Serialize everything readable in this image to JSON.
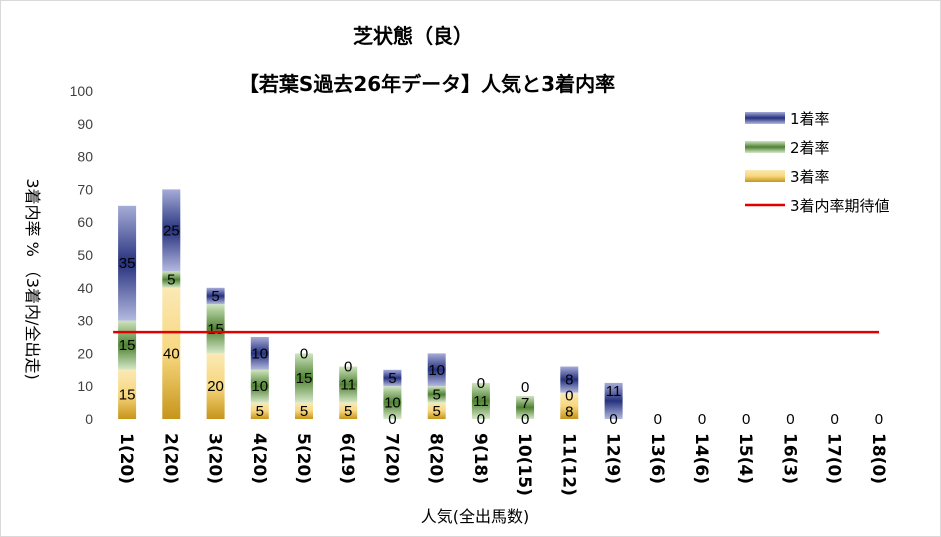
{
  "chart_data": {
    "type": "bar",
    "stacked": true,
    "title_line1": "芝状態（良）",
    "title_line2": "【若葉S過去26年データ】人気と3着内率",
    "xlabel": "人気(全出馬数)",
    "ylabel": "3着内率 % （3着内/全出走)",
    "ylim": [
      0,
      100
    ],
    "yticks": [
      0,
      10,
      20,
      30,
      40,
      50,
      60,
      70,
      80,
      90,
      100
    ],
    "grid": false,
    "legend_position": "top-right",
    "categories": [
      "1(20)",
      "2(20)",
      "3(20)",
      "4(20)",
      "5(20)",
      "6(19)",
      "7(20)",
      "8(20)",
      "9(18)",
      "10(15)",
      "11(12)",
      "12(9)",
      "13(6)",
      "14(6)",
      "15(4)",
      "16(3)",
      "17(0)",
      "18(0)"
    ],
    "series": [
      {
        "name": "3着率",
        "color": "#c79a1a",
        "values": [
          15,
          40,
          20,
          5,
          5,
          5,
          0,
          5,
          0,
          0,
          8,
          0,
          0,
          0,
          0,
          0,
          0,
          0
        ]
      },
      {
        "name": "2着率",
        "color": "#5a8f3c",
        "values": [
          15,
          5,
          15,
          10,
          15,
          11,
          10,
          5,
          11,
          7,
          0,
          0,
          0,
          0,
          0,
          0,
          0,
          0
        ]
      },
      {
        "name": "1着率",
        "color": "#2e3a87",
        "values": [
          35,
          25,
          5,
          10,
          0,
          0,
          5,
          10,
          0,
          0,
          8,
          11,
          0,
          0,
          0,
          0,
          0,
          0
        ]
      }
    ],
    "expected_line": {
      "name": "3着内率期待値",
      "color": "#e00000",
      "value": 26.5
    },
    "data_labels": [
      {
        "cat": 0,
        "text": "35"
      },
      {
        "cat": 0,
        "text": "15"
      },
      {
        "cat": 0,
        "text": "15"
      },
      {
        "cat": 1,
        "text": "25"
      },
      {
        "cat": 1,
        "text": "5"
      },
      {
        "cat": 1,
        "text": "40"
      },
      {
        "cat": 2,
        "text": "5"
      },
      {
        "cat": 2,
        "text": "15"
      },
      {
        "cat": 2,
        "text": "20"
      },
      {
        "cat": 3,
        "text": "10"
      },
      {
        "cat": 3,
        "text": "10"
      },
      {
        "cat": 3,
        "text": "5"
      },
      {
        "cat": 4,
        "text": "0"
      },
      {
        "cat": 4,
        "text": "15"
      },
      {
        "cat": 4,
        "text": "5"
      },
      {
        "cat": 5,
        "text": "0"
      },
      {
        "cat": 5,
        "text": "11"
      },
      {
        "cat": 5,
        "text": "5"
      },
      {
        "cat": 6,
        "text": "5"
      },
      {
        "cat": 6,
        "text": "10"
      },
      {
        "cat": 6,
        "text": "0"
      },
      {
        "cat": 7,
        "text": "10"
      },
      {
        "cat": 7,
        "text": "5"
      },
      {
        "cat": 7,
        "text": "5"
      },
      {
        "cat": 8,
        "text": "0"
      },
      {
        "cat": 8,
        "text": "11"
      },
      {
        "cat": 8,
        "text": "0"
      },
      {
        "cat": 9,
        "text": "0"
      },
      {
        "cat": 9,
        "text": "7"
      },
      {
        "cat": 9,
        "text": "0"
      },
      {
        "cat": 10,
        "text": "8"
      },
      {
        "cat": 10,
        "text": "0"
      },
      {
        "cat": 10,
        "text": "8"
      },
      {
        "cat": 11,
        "text": "11"
      },
      {
        "cat": 11,
        "text": "0"
      },
      {
        "cat": 12,
        "text": "0"
      },
      {
        "cat": 13,
        "text": "0"
      },
      {
        "cat": 14,
        "text": "0"
      },
      {
        "cat": 15,
        "text": "0"
      },
      {
        "cat": 16,
        "text": "0"
      },
      {
        "cat": 17,
        "text": "0"
      }
    ]
  }
}
